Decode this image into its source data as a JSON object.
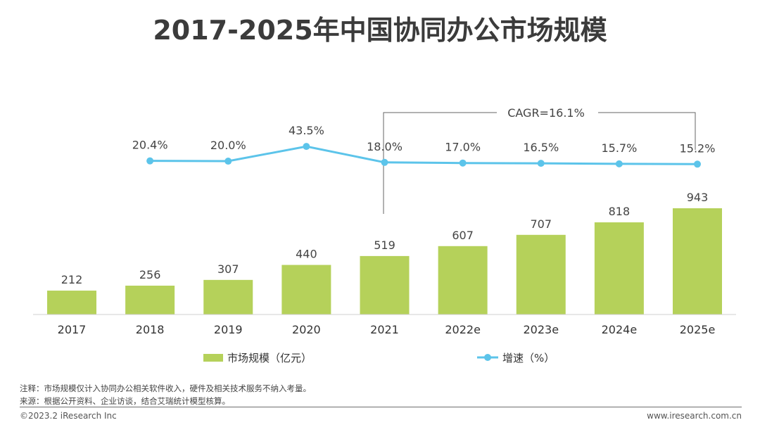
{
  "title": "2017-2025年中国协同办公市场规模",
  "chart_data": {
    "type": "bar",
    "categories": [
      "2017",
      "2018",
      "2019",
      "2020",
      "2021",
      "2022e",
      "2023e",
      "2024e",
      "2025e"
    ],
    "series": [
      {
        "name": "市场规模（亿元）",
        "type": "bar",
        "color": "#b5d15a",
        "values": [
          212,
          256,
          307,
          440,
          519,
          607,
          707,
          818,
          943
        ],
        "labels": [
          "212",
          "256",
          "307",
          "440",
          "519",
          "607",
          "707",
          "818",
          "943"
        ]
      },
      {
        "name": "增速（%）",
        "type": "line",
        "color": "#5cc4ea",
        "values": [
          null,
          20.4,
          20.0,
          43.5,
          18.0,
          17.0,
          16.5,
          15.7,
          15.2
        ],
        "labels": [
          "",
          "20.4%",
          "20.0%",
          "43.5%",
          "18.0%",
          "17.0%",
          "16.5%",
          "15.7%",
          "15.2%"
        ]
      }
    ],
    "annotation": {
      "text": "CAGR=16.1%",
      "from": "2021",
      "to": "2025e"
    },
    "xlabel": "",
    "ylabel": "",
    "grid": false,
    "legend": "bottom-center"
  },
  "notes": {
    "note1": "注释：市场规模仅计入协同办公相关软件收入，硬件及相关技术服务不纳入考量。",
    "note2": "来源：根据公开资料、企业访谈，结合艾瑞统计模型核算。"
  },
  "footer": {
    "copyright": "©2023.2 iResearch Inc",
    "website": "www.iresearch.com.cn"
  }
}
